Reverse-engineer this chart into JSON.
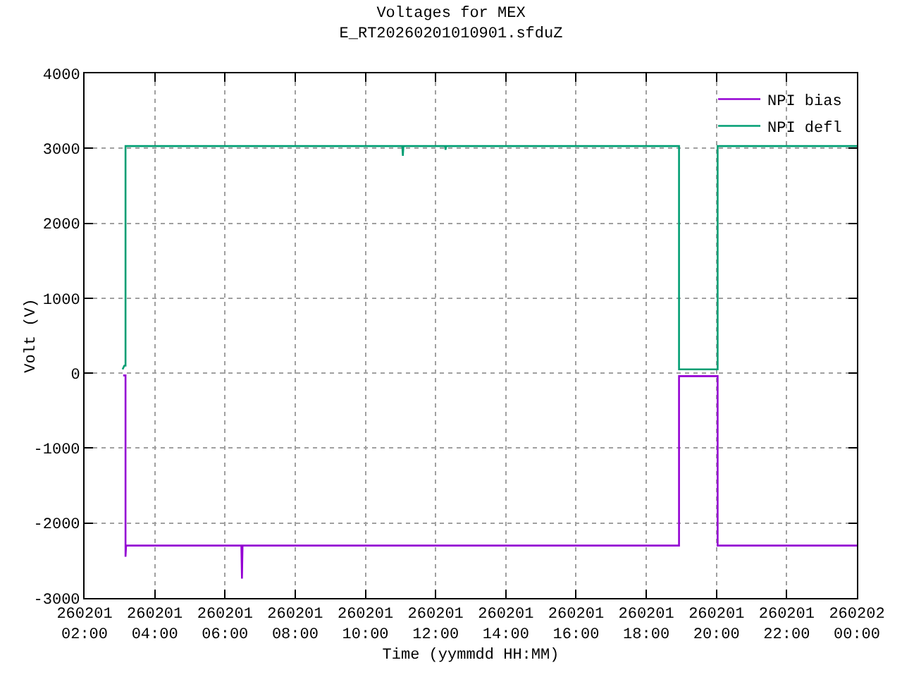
{
  "chart_data": {
    "type": "line",
    "title": "Voltages for MEX\nE_RT20260201010901.sfduZ",
    "xlabel": "Time (yymmdd HH:MM)",
    "ylabel": "Volt (V)",
    "series": [
      {
        "name": "NPI bias",
        "color": "#9400d3",
        "x": [
          "2026-02-01T03:06",
          "2026-02-01T03:10",
          "2026-02-01T03:10",
          "2026-02-01T03:11",
          "2026-02-01T06:28",
          "2026-02-01T06:29",
          "2026-02-01T06:30",
          "2026-02-01T18:56",
          "2026-02-01T18:56",
          "2026-02-01T20:02",
          "2026-02-01T20:02",
          "2026-02-02T00:00"
        ],
        "values": [
          -30,
          -30,
          -2450,
          -2300,
          -2300,
          -2740,
          -2300,
          -2300,
          -40,
          -40,
          -2300,
          -2300
        ]
      },
      {
        "name": "NPI defl",
        "color": "#009e73",
        "x": [
          "2026-02-01T03:05",
          "2026-02-01T03:08",
          "2026-02-01T03:10",
          "2026-02-01T03:10",
          "2026-02-01T11:03",
          "2026-02-01T11:04",
          "2026-02-01T11:05",
          "2026-02-01T12:16",
          "2026-02-01T12:17",
          "2026-02-01T12:18",
          "2026-02-01T18:56",
          "2026-02-01T18:56",
          "2026-02-01T20:02",
          "2026-02-01T20:02",
          "2026-02-02T00:00"
        ],
        "values": [
          50,
          100,
          100,
          3030,
          3030,
          2900,
          3030,
          3030,
          2980,
          3030,
          3030,
          50,
          50,
          3030,
          3030
        ]
      }
    ],
    "xlim": [
      "2026-02-01T02:00",
      "2026-02-02T00:00"
    ],
    "xticks": [
      {
        "value": "2026-02-01T02:00",
        "label": "260201\n02:00"
      },
      {
        "value": "2026-02-01T04:00",
        "label": "260201\n04:00"
      },
      {
        "value": "2026-02-01T06:00",
        "label": "260201\n06:00"
      },
      {
        "value": "2026-02-01T08:00",
        "label": "260201\n08:00"
      },
      {
        "value": "2026-02-01T10:00",
        "label": "260201\n10:00"
      },
      {
        "value": "2026-02-01T12:00",
        "label": "260201\n12:00"
      },
      {
        "value": "2026-02-01T14:00",
        "label": "260201\n14:00"
      },
      {
        "value": "2026-02-01T16:00",
        "label": "260201\n16:00"
      },
      {
        "value": "2026-02-01T18:00",
        "label": "260201\n18:00"
      },
      {
        "value": "2026-02-01T20:00",
        "label": "260201\n20:00"
      },
      {
        "value": "2026-02-01T22:00",
        "label": "260201\n22:00"
      },
      {
        "value": "2026-02-02T00:00",
        "label": "260202\n00:00"
      }
    ],
    "ylim": [
      -3000,
      4000
    ],
    "yticks": [
      -3000,
      -2000,
      -1000,
      0,
      1000,
      2000,
      3000,
      4000
    ],
    "grid": true,
    "legend": "top right",
    "marker": "none",
    "line_style": "solid"
  }
}
